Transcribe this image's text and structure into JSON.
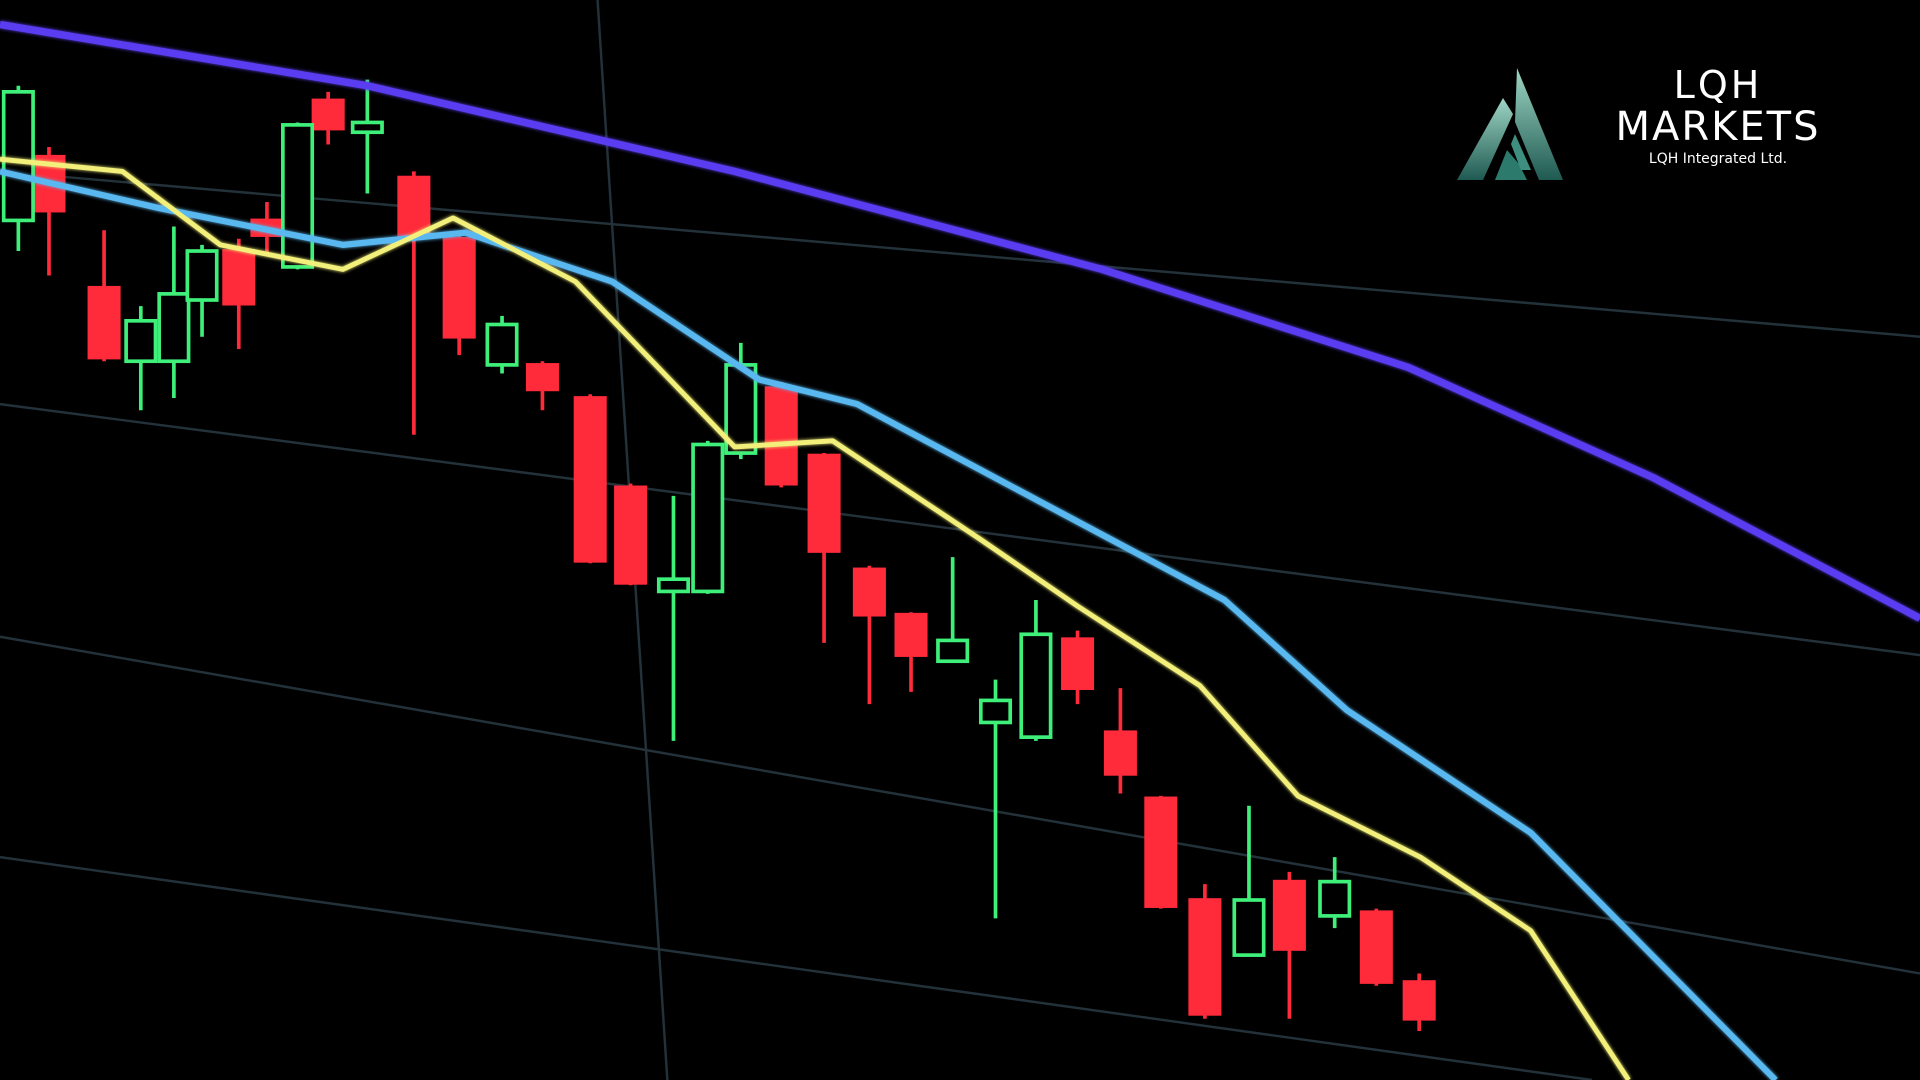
{
  "logo": {
    "line1": "LQH",
    "line2": "MARKETS",
    "tagline": "LQH Integrated Ltd.",
    "mark_colors": [
      "#9fd6c4",
      "#1f5a52"
    ]
  },
  "colors": {
    "background": "#000000",
    "bullish": "#3ef07a",
    "bearish": "#ff2a3a",
    "ma_slow": "#5a3cf0",
    "ma_mid": "#5ab8f0",
    "ma_fast": "#f2f07a",
    "grid": "#23323a"
  }
}
